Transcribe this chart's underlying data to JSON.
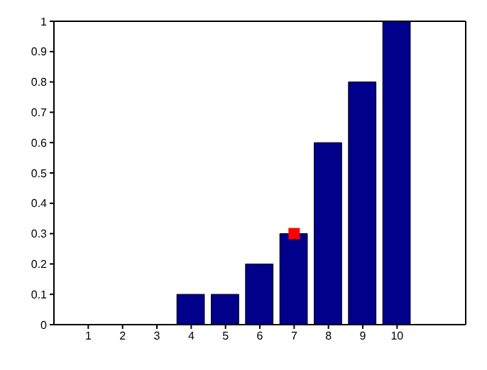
{
  "chart_data": {
    "type": "bar",
    "x": [
      1,
      2,
      3,
      4,
      5,
      6,
      7,
      8,
      9,
      10
    ],
    "series": [
      {
        "color": "#00008b",
        "values": [
          0,
          0,
          0,
          0.1,
          0.1,
          0.2,
          0.3,
          0.6,
          0.8,
          1
        ]
      },
      {
        "type": "scatter",
        "color": "#ff0000",
        "x": [
          7
        ],
        "values": [
          0.3
        ],
        "marker": "square"
      }
    ],
    "xlim": [
      0,
      12
    ],
    "xticks": [
      1,
      2,
      3,
      4,
      5,
      6,
      7,
      8,
      9,
      10
    ],
    "ylim": [
      0,
      1
    ],
    "yticks": [
      0,
      0.1,
      0.2,
      0.3,
      0.4,
      0.5,
      0.6,
      0.7,
      0.8,
      0.9,
      1
    ]
  }
}
